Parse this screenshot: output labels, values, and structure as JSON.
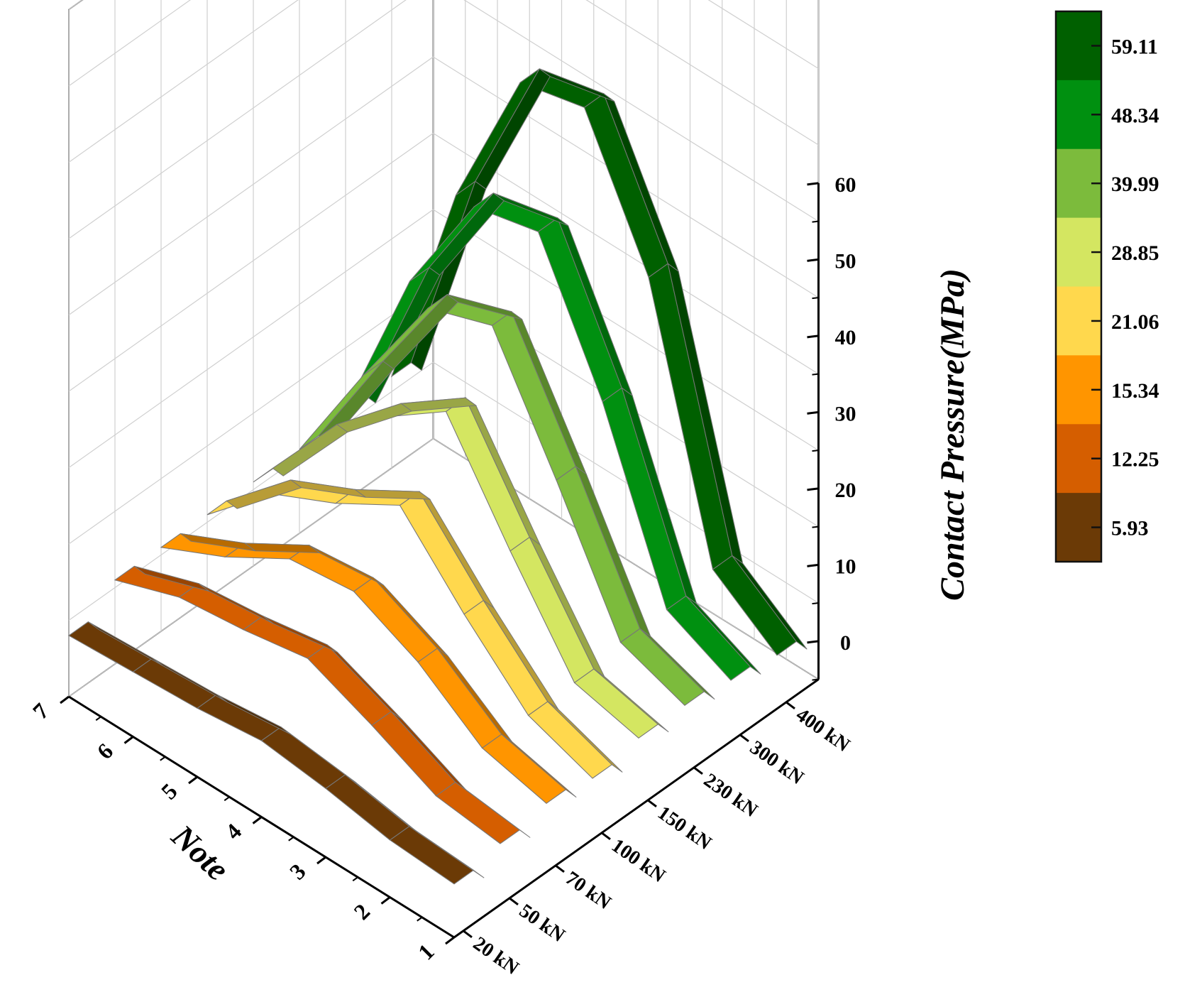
{
  "chart_data": {
    "type": "3d-waterfall",
    "xlabel": "Note",
    "zlabel": "Contact Pressure(MPa)",
    "x_ticks": [
      "1",
      "2",
      "3",
      "4",
      "5",
      "6",
      "7"
    ],
    "z_ticks": [
      "0",
      "10",
      "20",
      "30",
      "40",
      "50",
      "60"
    ],
    "zlim": [
      -5,
      60
    ],
    "xlim": [
      1,
      7
    ],
    "series": [
      {
        "name": "20 kN",
        "color": "#6b3a06",
        "values": [
          2.0,
          2.5,
          4.0,
          5.0,
          4.0,
          3.5,
          3.0
        ]
      },
      {
        "name": "50 kN",
        "color": "#d55e00",
        "values": [
          3.0,
          4.0,
          8.0,
          11.5,
          10.0,
          9.0,
          6.0
        ]
      },
      {
        "name": "70 kN",
        "color": "#ff9500",
        "values": [
          4.0,
          6.0,
          12.0,
          16.0,
          15.0,
          10.0,
          6.0
        ]
      },
      {
        "name": "100 kN",
        "color": "#ffd84d",
        "values": [
          3.0,
          6.0,
          14.0,
          23.0,
          18.0,
          14.0,
          6.0
        ]
      },
      {
        "name": "150 kN",
        "color": "#d4e661",
        "values": [
          4.0,
          6.0,
          18.0,
          31.0,
          25.0,
          17.0,
          6.0
        ]
      },
      {
        "name": "230 kN",
        "color": "#7cbb3c",
        "values": [
          4.0,
          7.0,
          23.0,
          38.0,
          35.0,
          21.0,
          6.0
        ]
      },
      {
        "name": "300 kN",
        "color": "#009010",
        "values": [
          3.0,
          7.0,
          29.0,
          46.0,
          44.0,
          29.0,
          7.0
        ]
      },
      {
        "name": "400 kN",
        "color": "#006000",
        "values": [
          2.0,
          8.0,
          41.0,
          58.0,
          56.0,
          36.0,
          7.0
        ]
      }
    ],
    "colorbar": {
      "labels": [
        "59.11",
        "48.34",
        "39.99",
        "28.85",
        "21.06",
        "15.34",
        "12.25",
        "5.93"
      ],
      "colors": [
        "#006000",
        "#009010",
        "#7cbb3c",
        "#d4e661",
        "#ffd84d",
        "#ff9500",
        "#d55e00",
        "#6b3a06"
      ]
    },
    "grid": true
  }
}
